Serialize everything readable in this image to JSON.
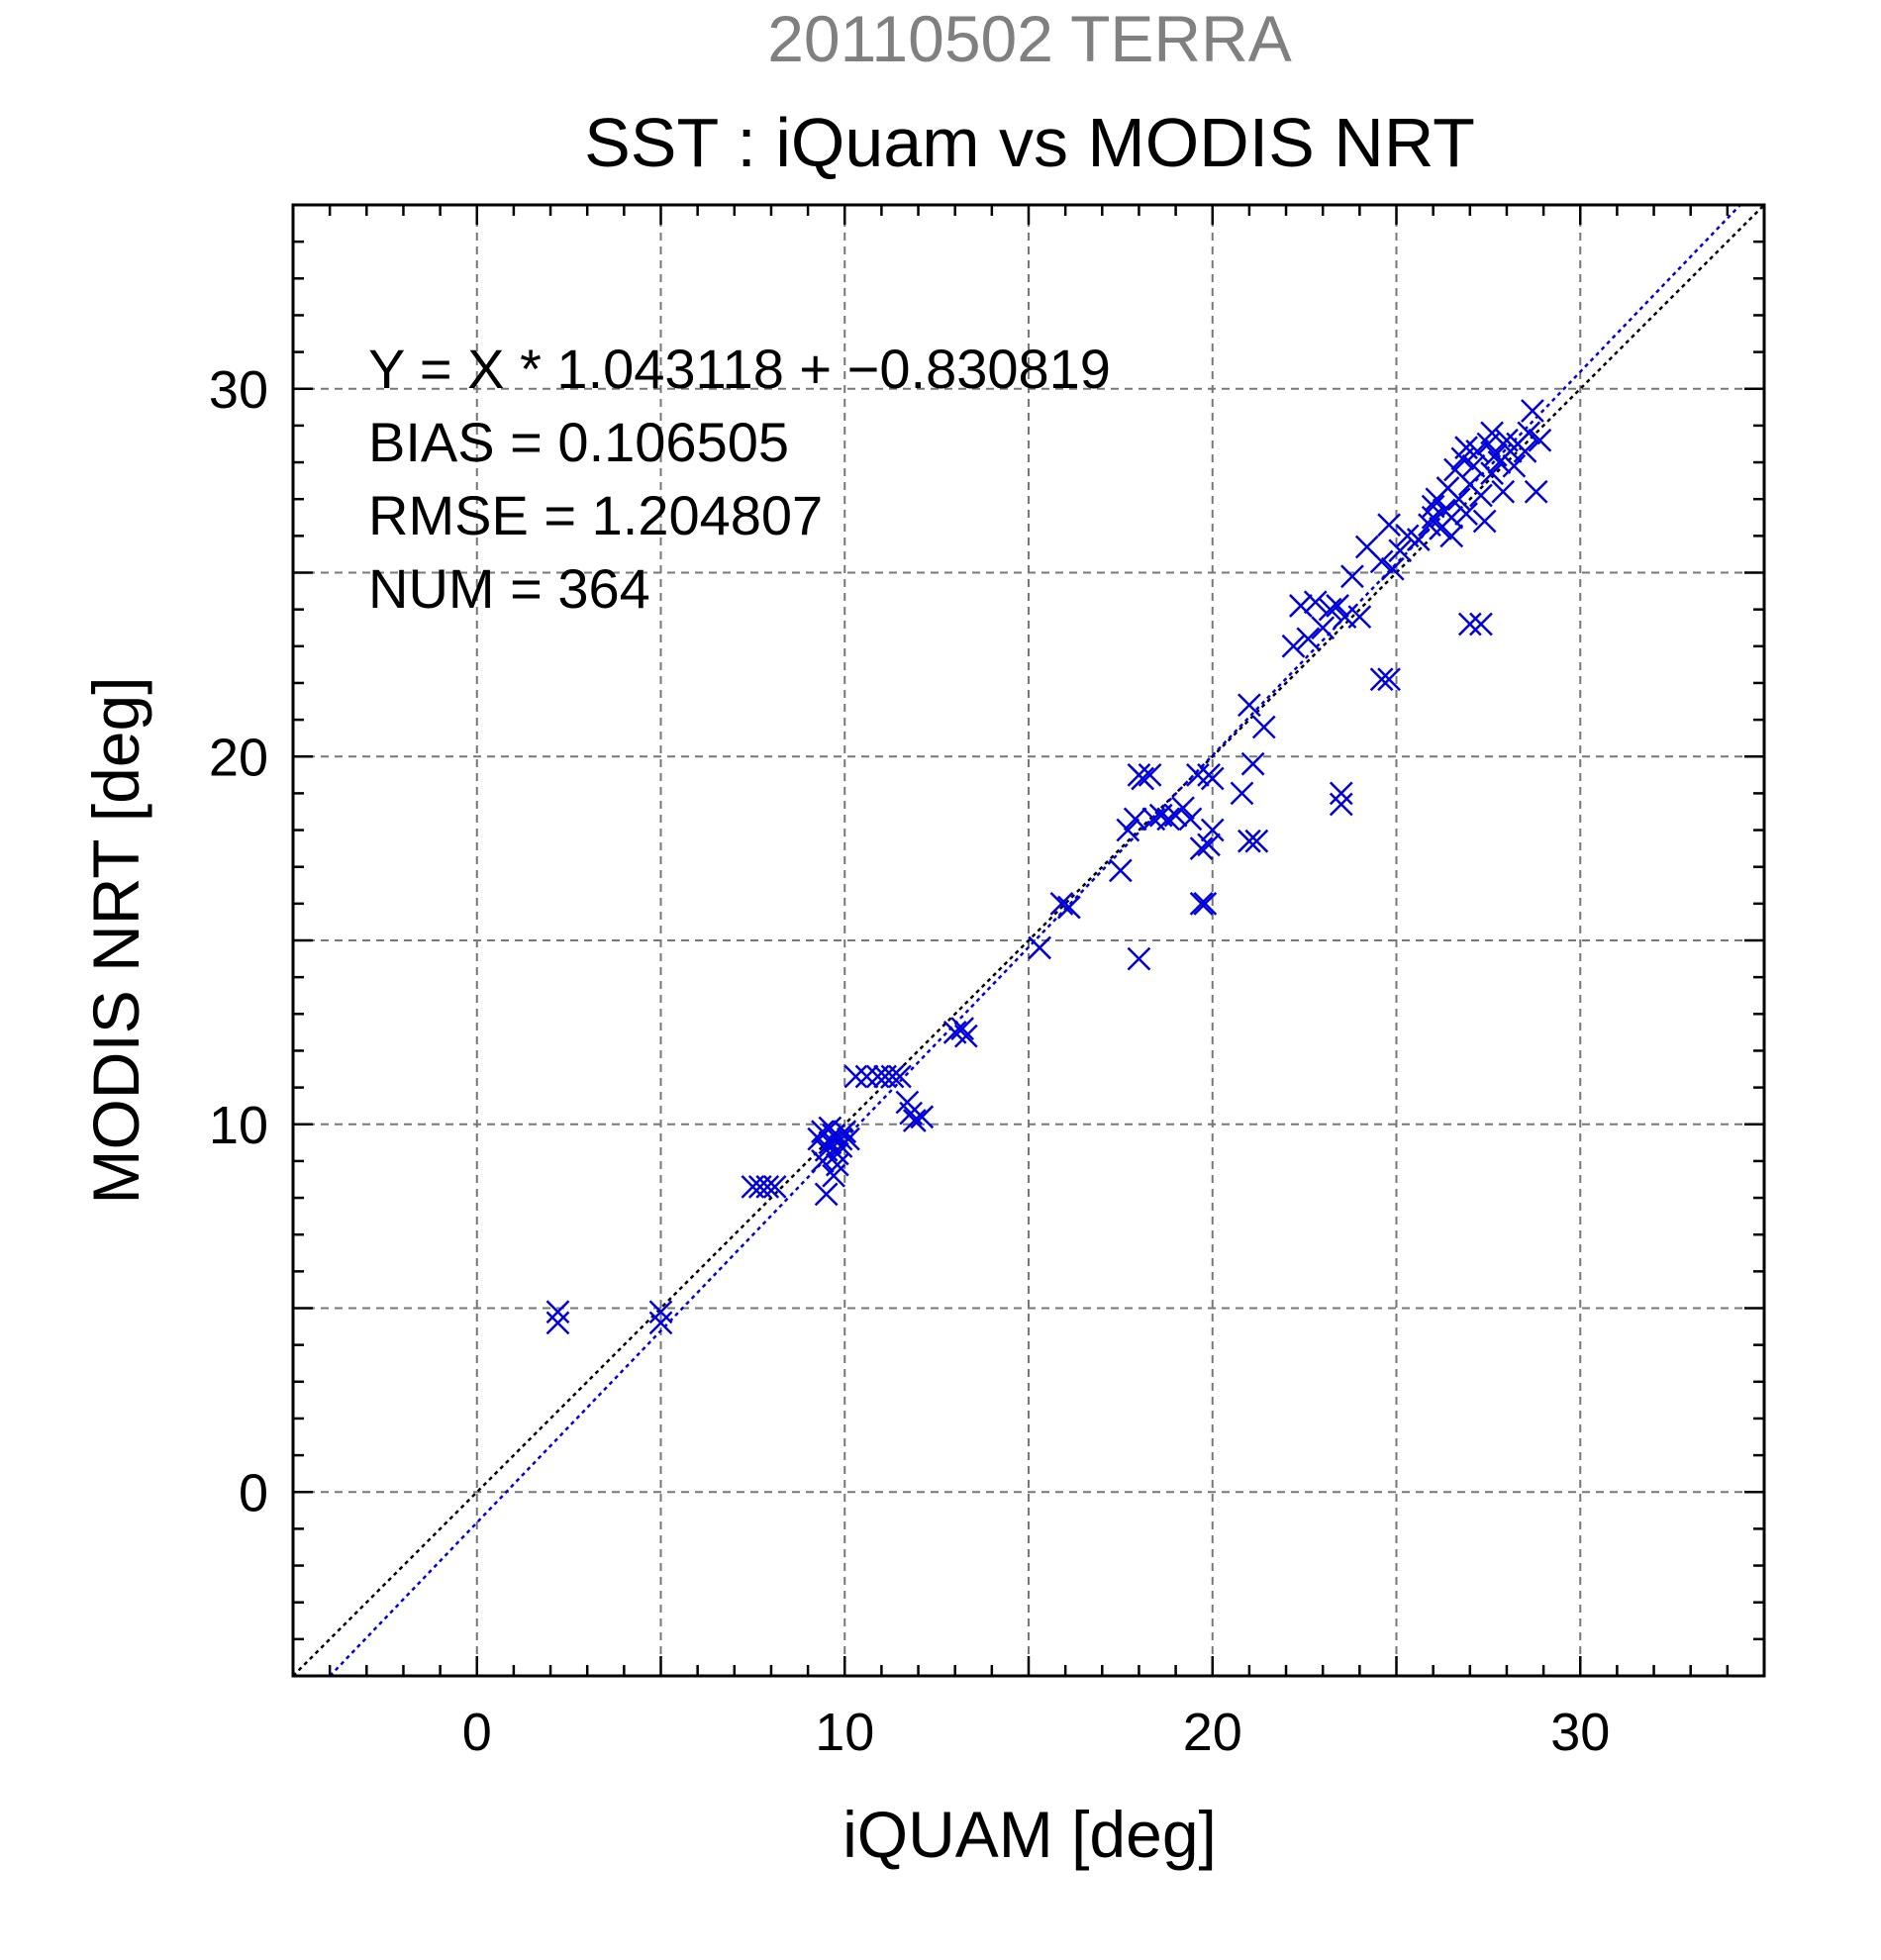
{
  "chart_data": {
    "type": "scatter",
    "supertitle": "20110502 TERRA",
    "title": "SST : iQuam vs MODIS NRT",
    "xlabel": "iQUAM [deg]",
    "ylabel": "MODIS NRT [deg]",
    "xlim": [
      -5,
      35
    ],
    "ylim": [
      -5,
      35
    ],
    "xticks": [
      0,
      10,
      20,
      30
    ],
    "yticks": [
      0,
      10,
      20,
      30
    ],
    "grid": true,
    "grid_values": [
      -5,
      0,
      5,
      10,
      15,
      20,
      25,
      30,
      35
    ],
    "marker": "x",
    "annotations": [
      "Y = X * 1.043118 + −0.830819",
      "BIAS = 0.106505",
      "RMSE = 1.204807",
      "NUM = 364"
    ],
    "lines": [
      {
        "kind": "identity",
        "slope": 1,
        "intercept": 0,
        "color": "#000000",
        "style": "dotted"
      },
      {
        "kind": "regression",
        "slope": 1.043118,
        "intercept": -0.830819,
        "color": "#0000dd",
        "style": "dotted"
      }
    ],
    "series": [
      {
        "color": "#0000dd",
        "points": [
          [
            2.2,
            4.6
          ],
          [
            2.2,
            4.9
          ],
          [
            5.0,
            4.6
          ],
          [
            5.0,
            4.9
          ],
          [
            7.5,
            8.3
          ],
          [
            7.7,
            8.3
          ],
          [
            7.9,
            8.3
          ],
          [
            8.1,
            8.3
          ],
          [
            9.3,
            9.6
          ],
          [
            9.4,
            9.8
          ],
          [
            9.5,
            9.3
          ],
          [
            9.6,
            9.5
          ],
          [
            9.7,
            9.7
          ],
          [
            9.8,
            9.2
          ],
          [
            9.9,
            9.6
          ],
          [
            9.5,
            8.1
          ],
          [
            9.7,
            8.6
          ],
          [
            9.8,
            8.9
          ],
          [
            10.0,
            9.8
          ],
          [
            9.4,
            9.0
          ],
          [
            9.6,
            9.9
          ],
          [
            9.9,
            9.4
          ],
          [
            10.1,
            9.6
          ],
          [
            10.3,
            11.3
          ],
          [
            10.6,
            11.3
          ],
          [
            10.9,
            11.3
          ],
          [
            11.1,
            11.3
          ],
          [
            11.3,
            11.3
          ],
          [
            11.5,
            11.3
          ],
          [
            11.7,
            10.6
          ],
          [
            11.8,
            10.3
          ],
          [
            11.9,
            10.1
          ],
          [
            12.1,
            10.2
          ],
          [
            13.0,
            12.5
          ],
          [
            13.2,
            12.6
          ],
          [
            13.3,
            12.4
          ],
          [
            15.3,
            14.8
          ],
          [
            15.9,
            16.0
          ],
          [
            16.1,
            15.9
          ],
          [
            17.5,
            16.9
          ],
          [
            17.7,
            18.0
          ],
          [
            17.9,
            18.3
          ],
          [
            18.0,
            14.5
          ],
          [
            18.1,
            19.4
          ],
          [
            18.0,
            19.5
          ],
          [
            18.3,
            19.5
          ],
          [
            18.4,
            18.3
          ],
          [
            18.6,
            18.4
          ],
          [
            18.8,
            18.3
          ],
          [
            19.0,
            18.4
          ],
          [
            19.2,
            18.6
          ],
          [
            19.4,
            18.3
          ],
          [
            19.6,
            19.5
          ],
          [
            19.7,
            16.0
          ],
          [
            19.8,
            16.0
          ],
          [
            19.7,
            17.5
          ],
          [
            19.9,
            17.6
          ],
          [
            20.0,
            18.0
          ],
          [
            19.9,
            19.5
          ],
          [
            20.0,
            19.4
          ],
          [
            20.8,
            19.0
          ],
          [
            21.0,
            21.4
          ],
          [
            21.0,
            17.7
          ],
          [
            21.2,
            17.7
          ],
          [
            21.1,
            19.8
          ],
          [
            21.4,
            20.8
          ],
          [
            22.2,
            23.0
          ],
          [
            22.4,
            24.1
          ],
          [
            22.6,
            23.2
          ],
          [
            22.8,
            24.2
          ],
          [
            23.0,
            23.5
          ],
          [
            23.2,
            24.0
          ],
          [
            23.4,
            24.1
          ],
          [
            23.5,
            19.0
          ],
          [
            23.5,
            18.7
          ],
          [
            23.6,
            23.8
          ],
          [
            23.8,
            24.9
          ],
          [
            24.0,
            23.8
          ],
          [
            24.2,
            25.7
          ],
          [
            24.6,
            25.3
          ],
          [
            24.6,
            22.1
          ],
          [
            24.8,
            22.1
          ],
          [
            24.8,
            26.3
          ],
          [
            24.9,
            25.1
          ],
          [
            25.1,
            25.6
          ],
          [
            25.3,
            26.0
          ],
          [
            25.6,
            25.9
          ],
          [
            25.9,
            26.3
          ],
          [
            26.0,
            26.5
          ],
          [
            26.1,
            27.0
          ],
          [
            26.2,
            26.2
          ],
          [
            26.3,
            26.7
          ],
          [
            26.4,
            27.3
          ],
          [
            26.5,
            26.5
          ],
          [
            26.6,
            27.8
          ],
          [
            26.7,
            27.0
          ],
          [
            26.8,
            28.1
          ],
          [
            26.9,
            26.6
          ],
          [
            27.0,
            27.4
          ],
          [
            27.0,
            23.6
          ],
          [
            27.1,
            27.9
          ],
          [
            27.2,
            28.3
          ],
          [
            27.3,
            23.6
          ],
          [
            27.3,
            27.1
          ],
          [
            27.4,
            26.4
          ],
          [
            27.5,
            28.5
          ],
          [
            27.6,
            27.7
          ],
          [
            27.7,
            28.2
          ],
          [
            27.8,
            28.0
          ],
          [
            27.9,
            27.2
          ],
          [
            28.0,
            28.6
          ],
          [
            28.1,
            28.3
          ],
          [
            28.3,
            28.5
          ],
          [
            28.5,
            28.3
          ],
          [
            28.6,
            28.8
          ],
          [
            28.7,
            29.4
          ],
          [
            28.8,
            27.2
          ],
          [
            28.9,
            28.6
          ],
          [
            26.5,
            26.0
          ],
          [
            26.0,
            26.8
          ],
          [
            26.9,
            28.4
          ],
          [
            27.6,
            28.8
          ],
          [
            28.2,
            27.9
          ]
        ]
      }
    ]
  }
}
